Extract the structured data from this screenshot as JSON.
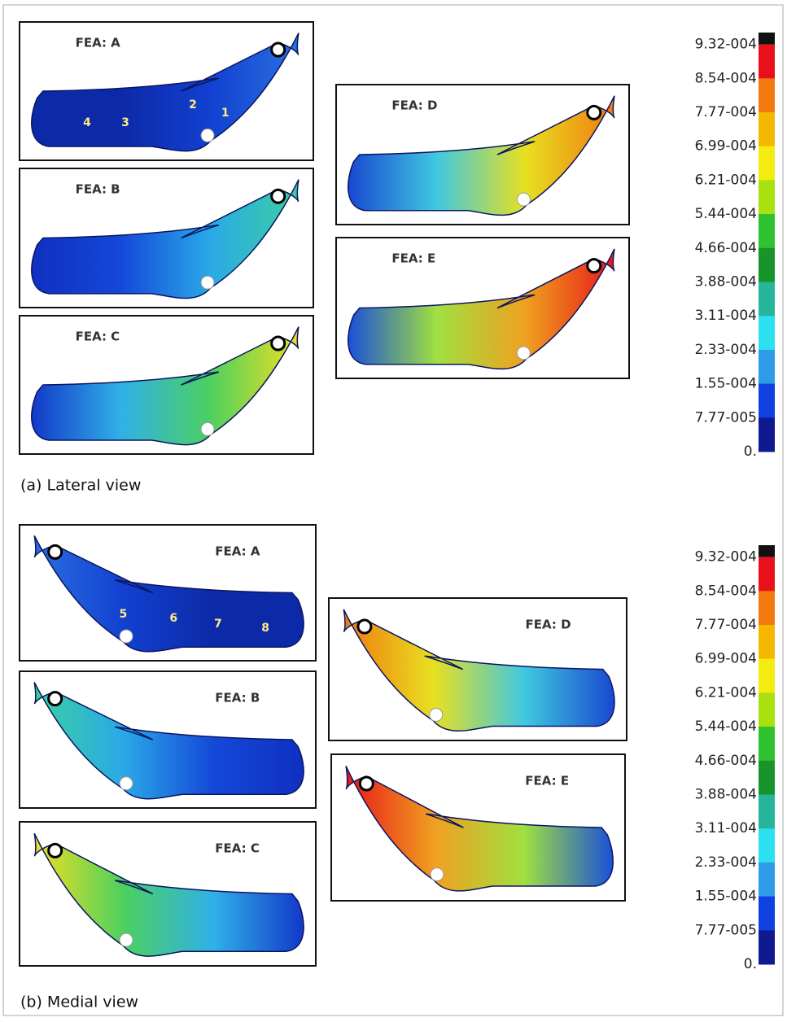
{
  "lateral": {
    "caption": "(a) Lateral view",
    "panels": [
      {
        "label": "FEA: A",
        "markers": [
          "4",
          "3",
          "2",
          "1"
        ]
      },
      {
        "label": "FEA: B"
      },
      {
        "label": "FEA: C"
      },
      {
        "label": "FEA: D"
      },
      {
        "label": "FEA: E"
      }
    ],
    "legend": [
      "9.32-004",
      "8.54-004",
      "7.77-004",
      "6.99-004",
      "6.21-004",
      "5.44-004",
      "4.66-004",
      "3.88-004",
      "3.11-004",
      "2.33-004",
      "1.55-004",
      "7.77-005",
      "0."
    ]
  },
  "medial": {
    "caption": "(b) Medial view",
    "panels": [
      {
        "label": "FEA: A",
        "markers": [
          "5",
          "6",
          "7",
          "8"
        ]
      },
      {
        "label": "FEA: B"
      },
      {
        "label": "FEA: C"
      },
      {
        "label": "FEA: D"
      },
      {
        "label": "FEA: E"
      }
    ],
    "legend": [
      "9.32-004",
      "8.54-004",
      "7.77-004",
      "6.99-004",
      "6.21-004",
      "5.44-004",
      "4.66-004",
      "3.88-004",
      "3.11-004",
      "2.33-004",
      "1.55-004",
      "7.77-005",
      "0."
    ]
  }
}
